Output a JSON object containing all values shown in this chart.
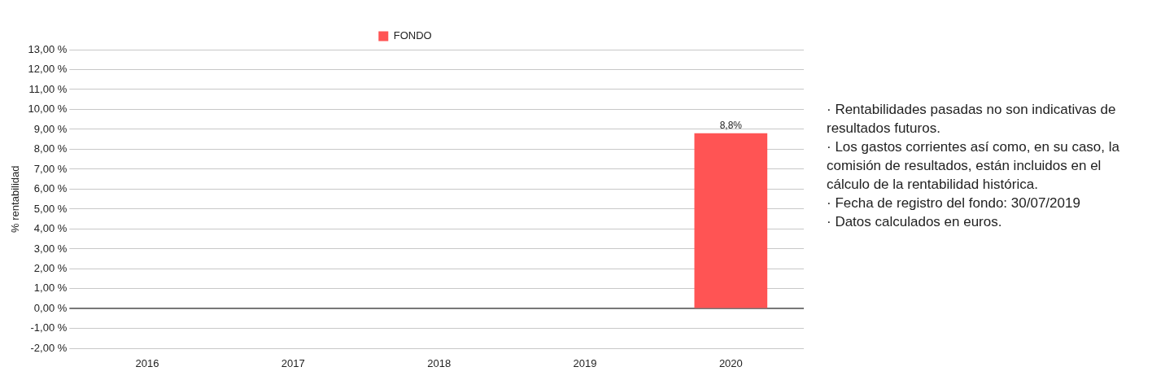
{
  "chart_data": {
    "type": "bar",
    "ylabel": "% rentabilidad",
    "categories": [
      "2016",
      "2017",
      "2018",
      "2019",
      "2020"
    ],
    "series": [
      {
        "name": "FONDO",
        "color": "#ff5454",
        "values": [
          null,
          null,
          null,
          null,
          8.8
        ],
        "value_labels": [
          null,
          null,
          null,
          null,
          "8,8%"
        ]
      }
    ],
    "ylim": [
      -2,
      13
    ],
    "yticks": [
      {
        "value": -2,
        "label": "-2,00 %"
      },
      {
        "value": -1,
        "label": "-1,00 %"
      },
      {
        "value": 0,
        "label": "0,00 %"
      },
      {
        "value": 1,
        "label": "1,00 %"
      },
      {
        "value": 2,
        "label": "2,00 %"
      },
      {
        "value": 3,
        "label": "3,00 %"
      },
      {
        "value": 4,
        "label": "4,00 %"
      },
      {
        "value": 5,
        "label": "5,00 %"
      },
      {
        "value": 6,
        "label": "6,00 %"
      },
      {
        "value": 7,
        "label": "7,00 %"
      },
      {
        "value": 8,
        "label": "8,00 %"
      },
      {
        "value": 9,
        "label": "9,00 %"
      },
      {
        "value": 10,
        "label": "10,00 %"
      },
      {
        "value": 11,
        "label": "11,00 %"
      },
      {
        "value": 12,
        "label": "12,00 %"
      },
      {
        "value": 13,
        "label": "13,00 %"
      }
    ],
    "grid": "y",
    "legend": "top",
    "annotations": [
      "· Rentabilidades pasadas no son indicativas de resultados futuros.",
      "· Los gastos corrientes así como, en su caso, la comisión de resultados, están incluidos en el cálculo de la rentabilidad histórica.",
      "· Fecha de registro del fondo: 30/07/2019",
      "· Datos calculados en euros."
    ]
  }
}
